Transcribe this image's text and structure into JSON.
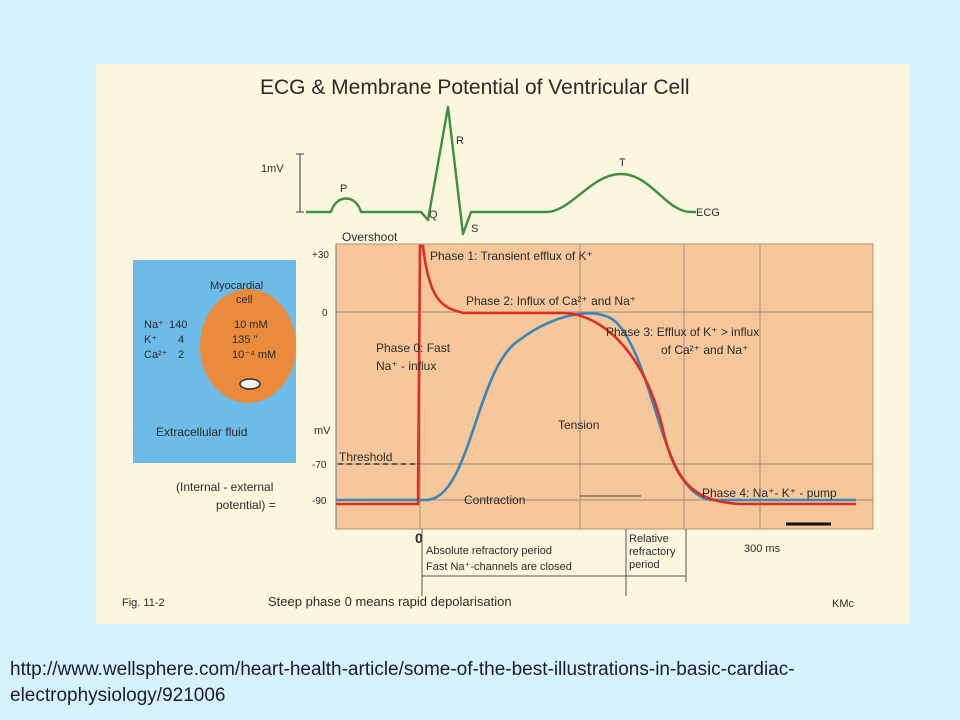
{
  "figure": {
    "title": "ECG & Membrane Potential of Ventricular Cell",
    "fig_label": "Fig. 11-2",
    "caption": "Steep phase 0 means rapid depolarisation",
    "credit": "KMc",
    "colors": {
      "page_bg": "#d6f3fb",
      "figure_bg": "#fbf7df",
      "plot_bg": "#f5c79b",
      "ecg_line": "#3f8f43",
      "membrane_potential_line": "#dc2f22",
      "tension_line": "#3b86b8",
      "cell_panel_bg": "#6cbbe8",
      "cell_fill": "#e98b3a"
    },
    "ecg": {
      "scale_label": "1mV",
      "series_label": "ECG",
      "waves": {
        "p": "P",
        "q": "Q",
        "r": "R",
        "s": "S",
        "t": "T"
      }
    },
    "potential_plot": {
      "unit": "mV",
      "y_ticks": [
        "+30",
        "0",
        "-70",
        "-90"
      ],
      "x_origin": "0",
      "time_scale": "300 ms",
      "overshoot": "Overshoot",
      "threshold": "Threshold",
      "phase0": [
        "Phase 0: Fast",
        "Na⁺ - influx"
      ],
      "phase1": "Phase 1: Transient efflux of K⁺",
      "phase2": "Phase 2: Influx of Ca²⁺ and Na⁺",
      "phase3": [
        "Phase 3: Efflux of K⁺ > influx",
        "of Ca²⁺ and Na⁺"
      ],
      "phase4": "Phase 4: Na⁺- K⁺ - pump",
      "tension": "Tension",
      "contraction": "Contraction",
      "potential_axis_note": [
        "(Internal - external",
        "potential) ="
      ]
    },
    "refractory": {
      "absolute": [
        "Absolute refractory period",
        "Fast Na⁺-channels are closed"
      ],
      "relative": [
        "Relative",
        "refractory",
        "period"
      ]
    },
    "cell": {
      "title": [
        "Myocardial",
        "cell"
      ],
      "ions": [
        {
          "ion": "Na⁺",
          "outside": "140",
          "inside": "10 mM"
        },
        {
          "ion": "K⁺",
          "outside": "4",
          "inside": "135  \""
        },
        {
          "ion": "Ca²⁺",
          "outside": "2",
          "inside": "10⁻⁴ mM"
        }
      ],
      "fluid_label": "Extracellular fluid"
    }
  },
  "source_url": "http://www.wellsphere.com/heart-health-article/some-of-the-best-illustrations-in-basic-cardiac-electrophysiology/921006"
}
